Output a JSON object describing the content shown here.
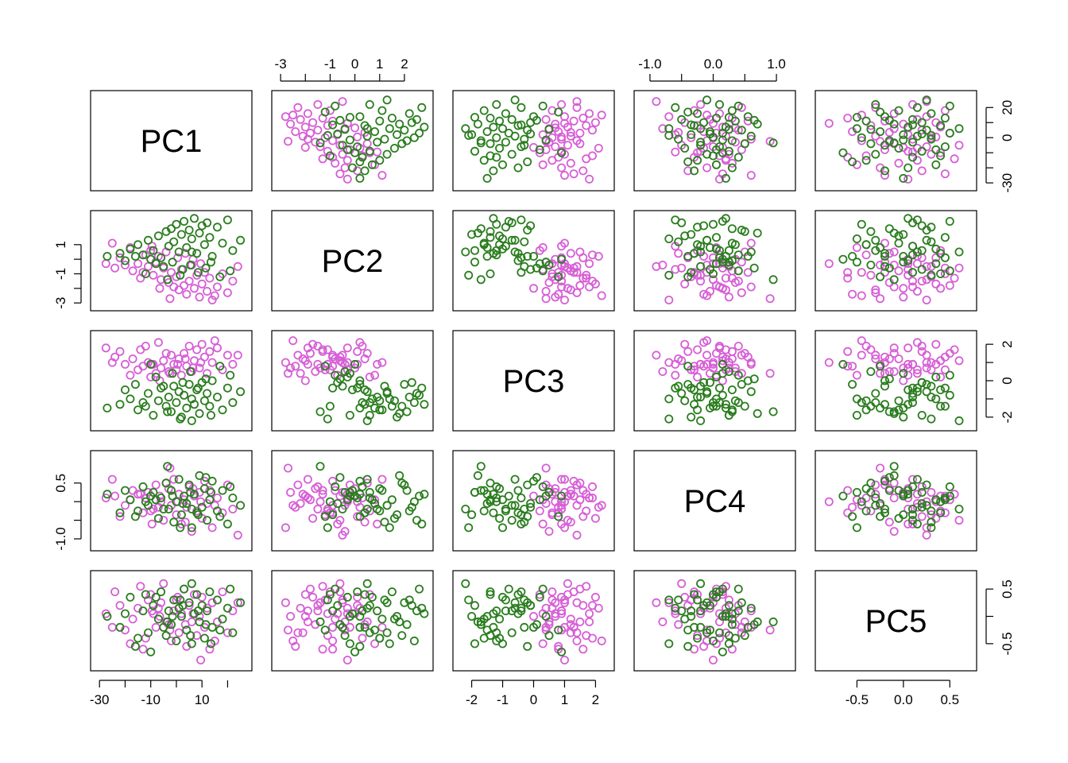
{
  "chart_data": {
    "type": "scatter",
    "variables": [
      "PC1",
      "PC2",
      "PC3",
      "PC4",
      "PC5"
    ],
    "ranges": {
      "PC1": [
        -31,
        27
      ],
      "PC2": [
        -3.1,
        2.9
      ],
      "PC3": [
        -2.4,
        2.4
      ],
      "PC4": [
        -1.15,
        1.2
      ],
      "PC5": [
        -0.88,
        0.72
      ]
    },
    "ticks": {
      "PC1": [
        "-30",
        "-10",
        "10"
      ],
      "PC2": [
        "-3",
        "-1",
        "0",
        "1",
        "2"
      ],
      "PC3": [
        "-2",
        "-1",
        "0",
        "1",
        "2"
      ],
      "PC4": [
        "-1.0",
        "0.0",
        "1.0"
      ],
      "PC5": [
        "-0.5",
        "0.0",
        "0.5"
      ]
    },
    "ticks_right": {
      "PC1": [
        "20",
        "0",
        "-30"
      ],
      "PC3": [
        "2",
        "0",
        "-2"
      ],
      "PC5": [
        "0.5",
        "-0.5"
      ]
    },
    "ticks_left": {
      "PC2": [
        "1",
        "-1",
        "-3"
      ],
      "PC4": [
        "0.5",
        "-1.0"
      ]
    },
    "series": [
      {
        "color": "#d65fd6",
        "points": [
          [
            -27.5,
            -0.3,
            1.8,
            0.1,
            0.05
          ],
          [
            -24,
            -0.6,
            1.3,
            0.15,
            0.45
          ],
          [
            -20,
            -0.4,
            0.9,
            -0.1,
            -0.25
          ],
          [
            -17,
            -0.8,
            1.2,
            0.3,
            -0.05
          ],
          [
            -15,
            -0.3,
            0.6,
            0.2,
            0.15
          ],
          [
            -13,
            -0.9,
            0.8,
            -0.3,
            -0.6
          ],
          [
            -11,
            -0.5,
            1.0,
            0.25,
            0.3
          ],
          [
            -9,
            -1.1,
            0.9,
            -0.2,
            0.05
          ],
          [
            -8,
            -0.2,
            0.4,
            0.45,
            -0.2
          ],
          [
            -6,
            -1.4,
            0.7,
            0.0,
            0.25
          ],
          [
            -5,
            -0.6,
            1.1,
            -0.5,
            0.6
          ],
          [
            -3,
            -1.6,
            0.5,
            0.35,
            -0.15
          ],
          [
            -2,
            -0.9,
            1.4,
            -0.1,
            -0.45
          ],
          [
            -1,
            -1.9,
            0.9,
            0.6,
            0.1
          ],
          [
            0,
            -1.2,
            0.6,
            -0.35,
            0.3
          ],
          [
            1,
            -2.1,
            1.2,
            0.2,
            -0.3
          ],
          [
            2,
            -0.7,
            0.3,
            -0.6,
            0.05
          ],
          [
            3,
            -1.8,
            1.5,
            0.05,
            0.5
          ],
          [
            4,
            -2.4,
            0.8,
            -0.15,
            -0.55
          ],
          [
            5,
            -1.5,
            1.9,
            0.4,
            0.2
          ],
          [
            6,
            -0.4,
            0.5,
            -0.8,
            -0.1
          ],
          [
            7,
            -2.0,
            1.1,
            0.15,
            0.4
          ],
          [
            8,
            -1.1,
            1.7,
            -0.25,
            -0.35
          ],
          [
            9,
            -2.6,
            0.7,
            0.25,
            0.0
          ],
          [
            10,
            -1.7,
            2.0,
            -0.45,
            0.35
          ],
          [
            11,
            -0.9,
            1.3,
            0.55,
            -0.2
          ],
          [
            12,
            -2.2,
            0.4,
            -0.05,
            0.15
          ],
          [
            13,
            -1.3,
            1.6,
            0.3,
            -0.6
          ],
          [
            14,
            -2.8,
            1.0,
            -0.7,
            0.25
          ],
          [
            16,
            -1.9,
            1.8,
            0.1,
            -0.1
          ],
          [
            18,
            -1.0,
            0.6,
            -0.3,
            0.45
          ],
          [
            20,
            -2.3,
            1.4,
            0.45,
            -0.3
          ],
          [
            22,
            -1.5,
            0.9,
            -0.2,
            0.1
          ],
          [
            -22,
            0.1,
            1.6,
            -0.4,
            0.2
          ],
          [
            -12,
            0.3,
            1.9,
            0.1,
            -0.4
          ],
          [
            -7,
            0.2,
            2.1,
            -0.15,
            0.15
          ],
          [
            -4,
            0.5,
            1.5,
            0.5,
            -0.1
          ],
          [
            0.5,
            0.1,
            0.9,
            0.0,
            0.35
          ],
          [
            3.5,
            0.4,
            1.2,
            -0.55,
            -0.15
          ],
          [
            6.5,
            0.0,
            0.7,
            0.35,
            0.05
          ],
          [
            -18,
            0.8,
            0.3,
            0.05,
            -0.5
          ],
          [
            -10,
            0.6,
            0.2,
            -0.25,
            0.4
          ],
          [
            -25,
            1.1,
            1.0,
            0.6,
            -0.2
          ],
          [
            -14,
            -1.3,
            1.7,
            0.2,
            0.55
          ],
          [
            15,
            -2.5,
            2.2,
            -0.1,
            -0.45
          ],
          [
            -6.5,
            -2.0,
            0.0,
            0.15,
            0.0
          ],
          [
            24,
            -0.5,
            1.4,
            -0.9,
            0.25
          ],
          [
            -2.5,
            -2.7,
            0.4,
            0.9,
            -0.25
          ],
          [
            -9.5,
            0.9,
            0.9,
            -0.6,
            0.1
          ],
          [
            9.5,
            -0.3,
            1.0,
            0.0,
            -0.8
          ]
        ]
      },
      {
        "color": "#2a7d1e",
        "points": [
          [
            -27,
            0.2,
            -1.5,
            0.2,
            0.0
          ],
          [
            -22,
            0.4,
            -1.3,
            -0.3,
            -0.2
          ],
          [
            -18,
            0.7,
            -1.0,
            0.05,
            0.35
          ],
          [
            -15,
            1.0,
            -1.6,
            -0.25,
            -0.4
          ],
          [
            -13,
            0.3,
            -1.2,
            0.4,
            0.1
          ],
          [
            -11,
            1.3,
            -0.7,
            -0.1,
            -0.3
          ],
          [
            -9,
            0.6,
            -1.9,
            0.25,
            0.2
          ],
          [
            -7,
            1.6,
            -1.1,
            -0.45,
            -0.05
          ],
          [
            -6,
            0.1,
            -0.4,
            0.1,
            0.45
          ],
          [
            -4,
            1.9,
            -1.4,
            0.5,
            -0.35
          ],
          [
            -3,
            0.9,
            -0.9,
            -0.2,
            0.1
          ],
          [
            -2,
            2.1,
            -1.7,
            0.3,
            -0.15
          ],
          [
            -1,
            1.2,
            -0.3,
            -0.55,
            0.3
          ],
          [
            0,
            2.4,
            -1.2,
            0.0,
            -0.45
          ],
          [
            1,
            0.5,
            -0.6,
            0.6,
            0.15
          ],
          [
            2,
            1.7,
            -2.0,
            -0.35,
            0.0
          ],
          [
            3,
            2.6,
            -0.8,
            0.15,
            0.5
          ],
          [
            4,
            0.8,
            -1.5,
            -0.05,
            -0.25
          ],
          [
            5,
            2.0,
            -0.2,
            0.45,
            0.25
          ],
          [
            6,
            1.4,
            -1.0,
            -0.7,
            -0.5
          ],
          [
            7,
            2.8,
            -1.3,
            0.2,
            0.05
          ],
          [
            8,
            0.4,
            -0.5,
            -0.3,
            0.4
          ],
          [
            9,
            1.8,
            -1.8,
            0.7,
            -0.1
          ],
          [
            10,
            2.3,
            -0.1,
            -0.15,
            0.2
          ],
          [
            11,
            1.0,
            -1.1,
            0.35,
            -0.4
          ],
          [
            12,
            2.5,
            -0.7,
            -0.5,
            0.1
          ],
          [
            13,
            1.5,
            -1.4,
            0.05,
            0.45
          ],
          [
            14,
            0.2,
            0.0,
            0.55,
            -0.2
          ],
          [
            16,
            2.2,
            -0.9,
            -0.25,
            0.3
          ],
          [
            18,
            1.1,
            -1.6,
            0.3,
            -0.05
          ],
          [
            20,
            2.7,
            -0.4,
            -0.6,
            0.15
          ],
          [
            22,
            0.6,
            -1.2,
            0.1,
            -0.3
          ],
          [
            25,
            1.3,
            -0.6,
            -0.1,
            0.25
          ],
          [
            -20,
            -0.1,
            -0.5,
            0.3,
            0.05
          ],
          [
            -16,
            0.2,
            -0.2,
            -0.4,
            -0.55
          ],
          [
            -8,
            -0.3,
            0.2,
            0.05,
            0.35
          ],
          [
            -5,
            -0.5,
            -0.3,
            -0.2,
            -0.2
          ],
          [
            -1.5,
            -0.2,
            0.4,
            0.15,
            0.0
          ],
          [
            2.5,
            -0.7,
            -0.1,
            -0.05,
            0.2
          ],
          [
            5.5,
            -0.4,
            0.5,
            0.25,
            -0.35
          ],
          [
            8.5,
            -0.9,
            -0.4,
            -0.35,
            0.1
          ],
          [
            11.5,
            -0.6,
            0.1,
            0.65,
            -0.15
          ],
          [
            -12,
            -1.0,
            -1.4,
            0.0,
            0.4
          ],
          [
            17,
            -1.2,
            0.8,
            -0.4,
            -0.25
          ],
          [
            21,
            -0.8,
            0.3,
            0.4,
            0.5
          ],
          [
            -3.5,
            -1.4,
            -1.7,
            0.95,
            -0.1
          ],
          [
            1.5,
            -1.1,
            -2.1,
            -0.7,
            0.3
          ],
          [
            -10,
            0.0,
            0.9,
            0.15,
            -0.65
          ],
          [
            6,
            0.5,
            -2.2,
            -0.2,
            0.6
          ],
          [
            13.5,
            -0.2,
            -1.9,
            0.25,
            -0.5
          ]
        ]
      }
    ]
  }
}
